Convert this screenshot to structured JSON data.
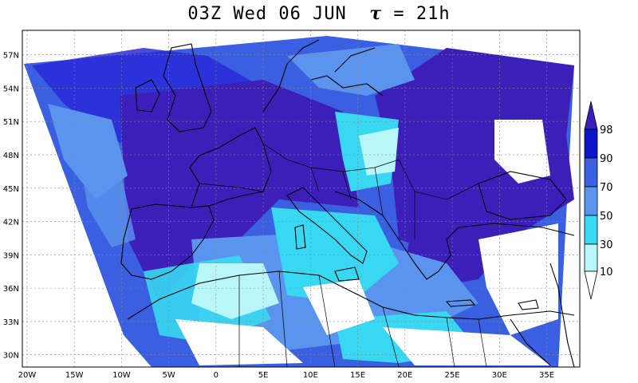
{
  "title": {
    "time": "03Z Wed 06 JUN",
    "tau_symbol": "τ",
    "tau_value": "= 21h"
  },
  "axes": {
    "lon_ticks": [
      "20W",
      "15W",
      "10W",
      "5W",
      "0",
      "5E",
      "10E",
      "15E",
      "20E",
      "25E",
      "30E",
      "35E"
    ],
    "lat_ticks": [
      "57N",
      "54N",
      "51N",
      "48N",
      "45N",
      "42N",
      "39N",
      "36N",
      "33N",
      "30N"
    ],
    "lon_range": [
      -20.5,
      38.5
    ],
    "lat_range": [
      28.9,
      59.2
    ]
  },
  "colorbar": {
    "levels": [
      "98",
      "90",
      "70",
      "50",
      "30",
      "10"
    ],
    "colors": [
      "#3c1fb8",
      "#0a14c8",
      "#3a5fe0",
      "#5a94ee",
      "#38d8f2",
      "#b8f6fa",
      "#ffffff"
    ]
  }
}
